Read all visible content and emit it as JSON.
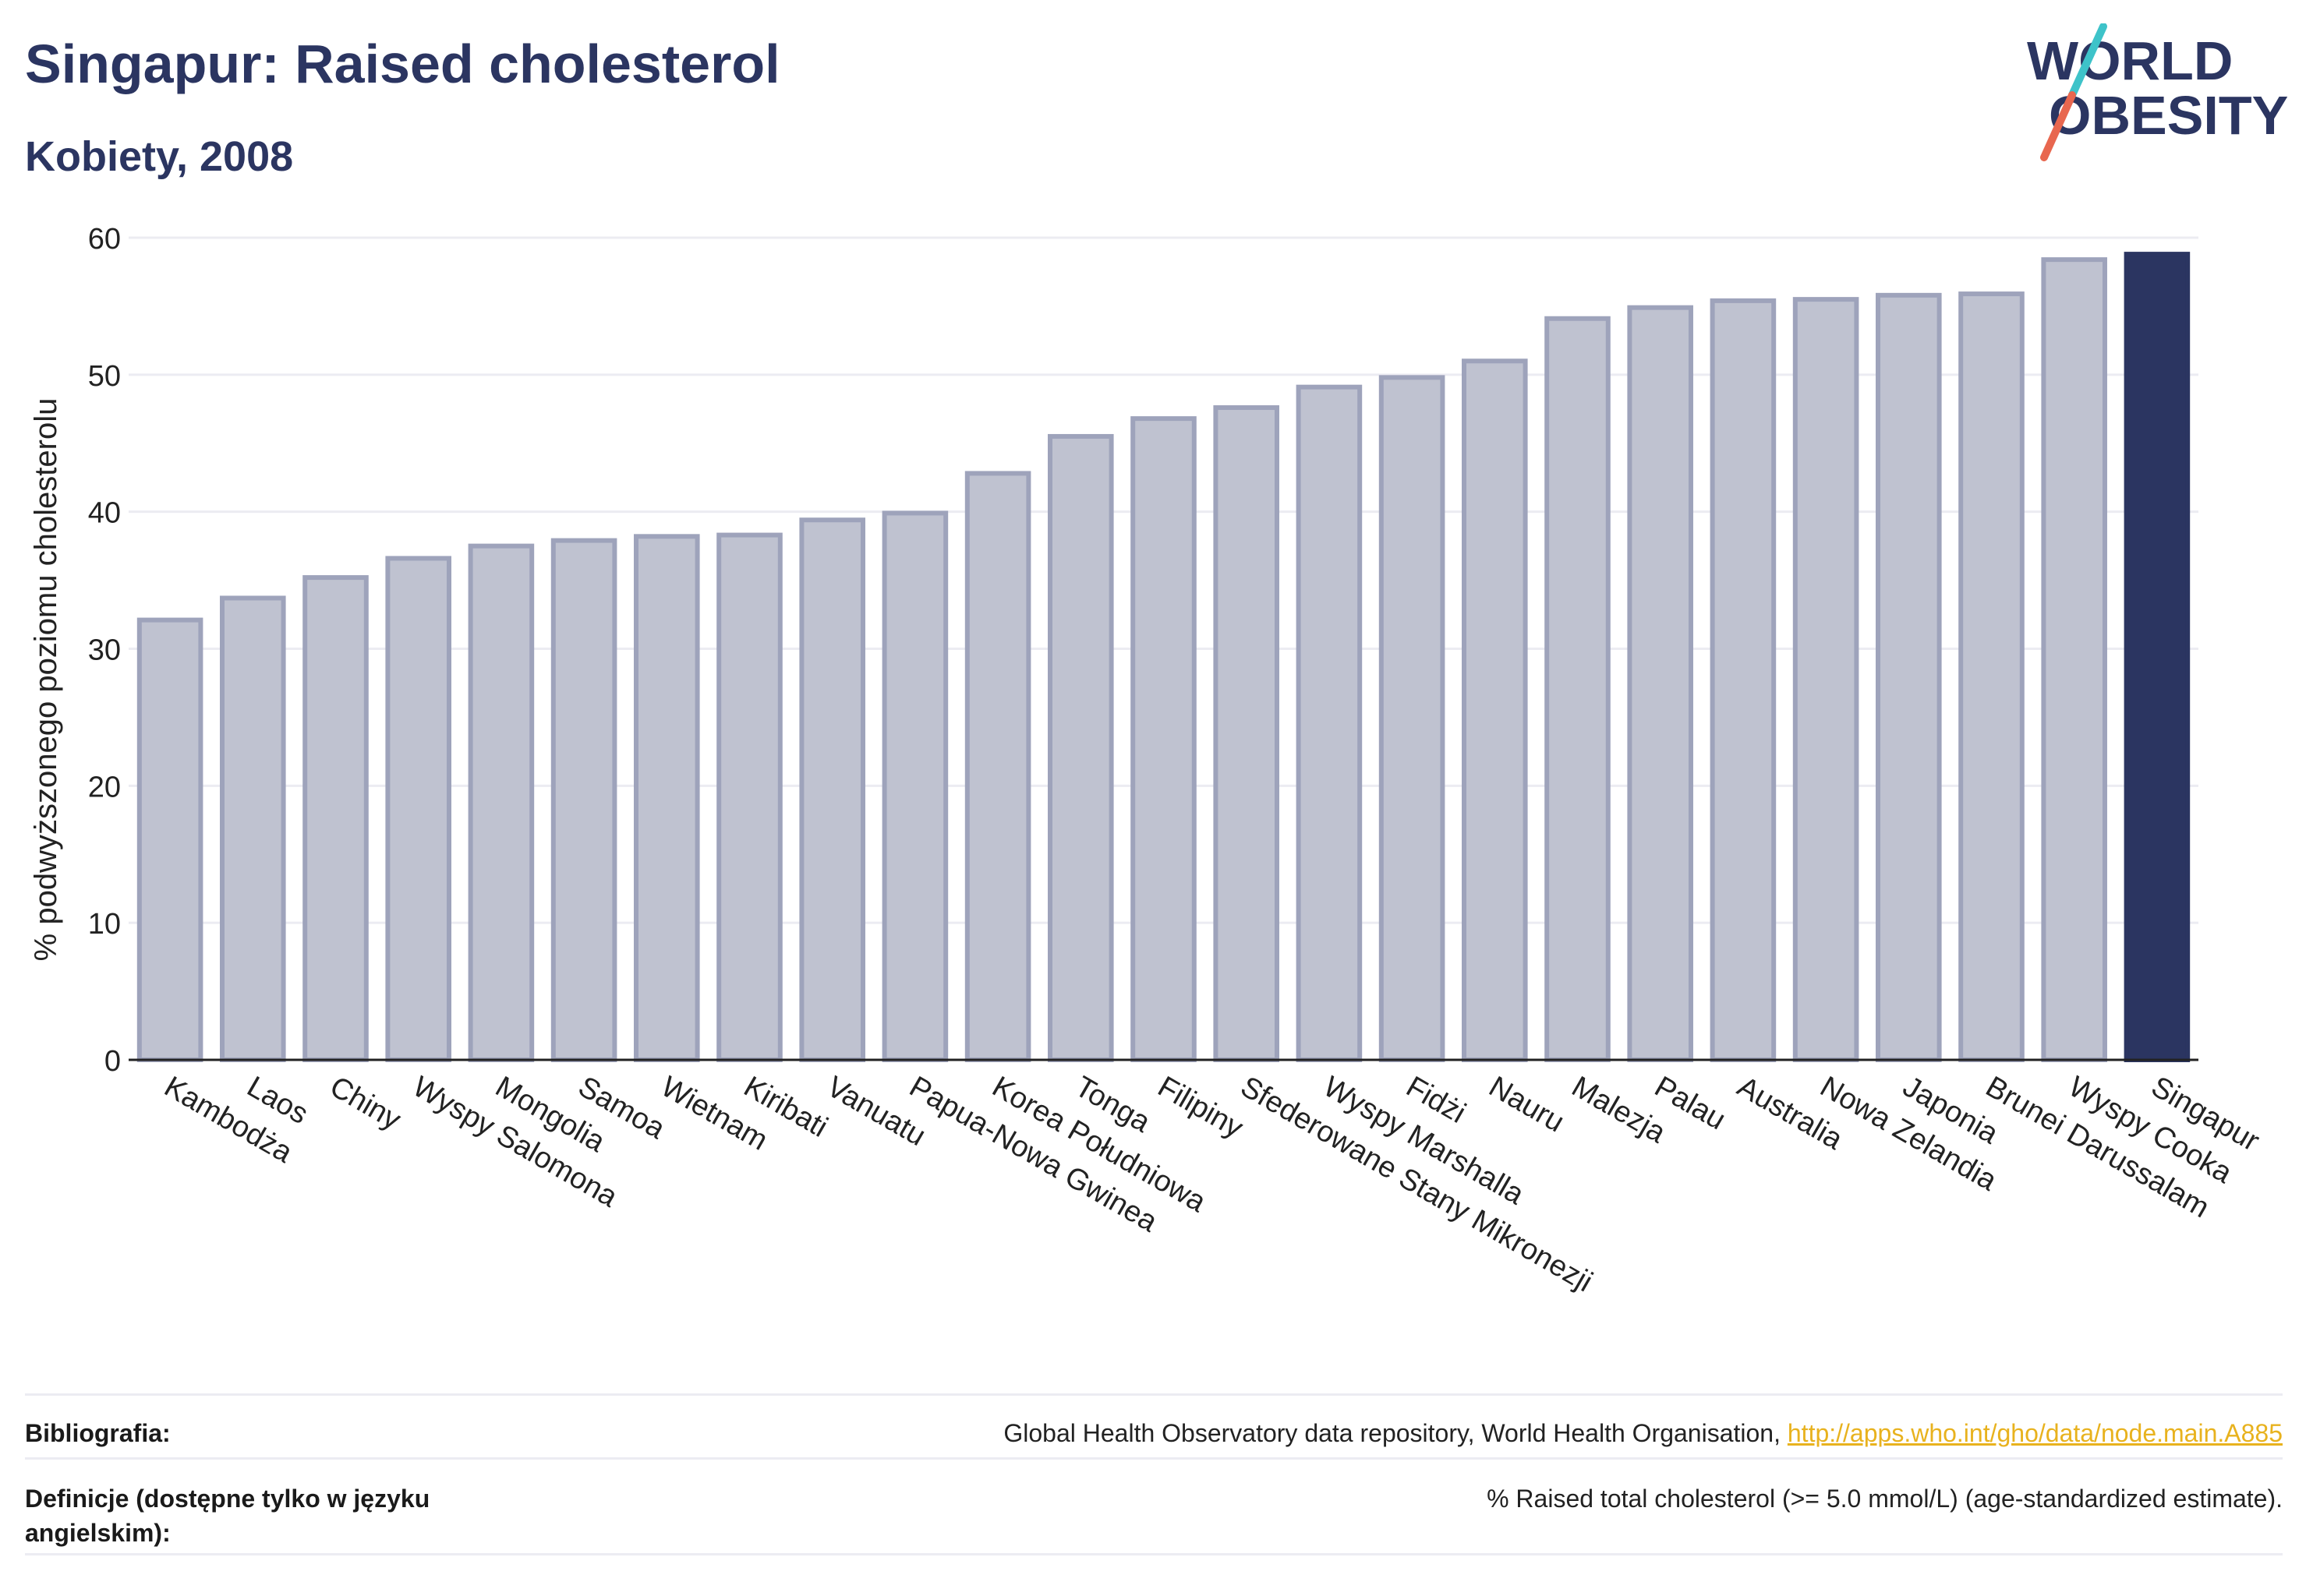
{
  "header": {
    "title": "Singapur: Raised cholesterol",
    "subtitle": "Kobiety, 2008"
  },
  "logo": {
    "line1": "WORLD",
    "line2": "OBESITY",
    "colors": {
      "text": "#2b3561",
      "slash_top": "#3ec3c9",
      "slash_bottom": "#e8674f"
    }
  },
  "colors": {
    "bar_fill": "#bfc2d0",
    "bar_stroke": "#9ea3bb",
    "highlight": "#2b3561",
    "grid": "#ececf2",
    "axis": "#222222"
  },
  "chart_data": {
    "type": "bar",
    "ylabel": "% podwyższonego poziomu cholesterolu",
    "ylim": [
      0,
      60
    ],
    "yticks": [
      0,
      10,
      20,
      30,
      40,
      50,
      60
    ],
    "grid": true,
    "highlight_category": "Singapur",
    "categories": [
      "Kambodża",
      "Laos",
      "Chiny",
      "Wyspy Salomona",
      "Mongolia",
      "Samoa",
      "Wietnam",
      "Kiribati",
      "Vanuatu",
      "Papua-Nowa Gwinea",
      "Korea Południowa",
      "Tonga",
      "Filipiny",
      "Sfederowane Stany Mikronezji",
      "Wyspy Marshalla",
      "Fidżi",
      "Nauru",
      "Malezja",
      "Palau",
      "Australia",
      "Nowa Zelandia",
      "Japonia",
      "Brunei Darussalam",
      "Wyspy Cooka",
      "Singapur"
    ],
    "values": [
      32.1,
      33.7,
      35.2,
      36.6,
      37.5,
      37.9,
      38.2,
      38.3,
      39.4,
      39.9,
      42.8,
      45.5,
      46.8,
      47.6,
      49.1,
      49.8,
      51.0,
      54.1,
      54.9,
      55.4,
      55.5,
      55.8,
      55.9,
      58.4,
      58.8
    ]
  },
  "footer": {
    "bibliography_label": "Bibliografia:",
    "bibliography_text": "Global Health Observatory data repository, World Health Organisation, ",
    "bibliography_link": "http://apps.who.int/gho/data/node.main.A885",
    "definitions_label": "Definicje (dostępne tylko w języku angielskim):",
    "definitions_text": "% Raised total cholesterol (>= 5.0 mmol/L) (age-standardized estimate)."
  }
}
